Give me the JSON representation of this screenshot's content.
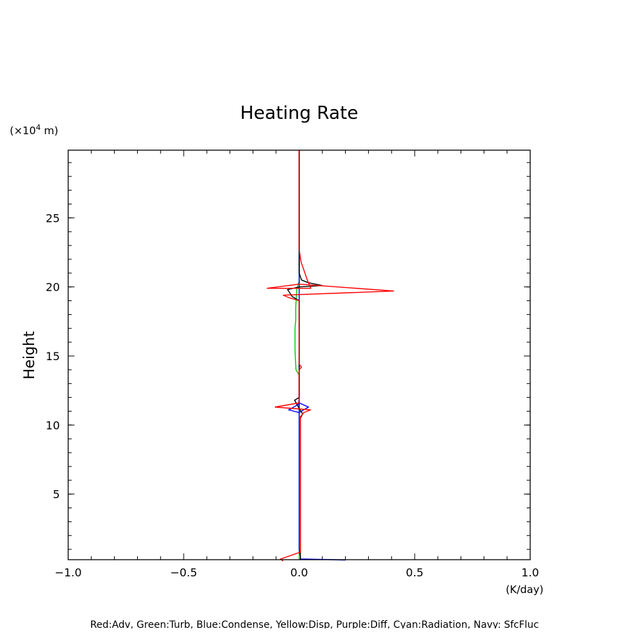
{
  "chart_data": {
    "type": "line",
    "title": "Heating Rate",
    "xlabel": "(K/day)",
    "ylabel": "Height",
    "yunit_prefix": "(×10",
    "yunit_exp": "4",
    "yunit_suffix": " m)",
    "xlim": [
      -1.0,
      1.0
    ],
    "ylim": [
      0.25,
      29.9
    ],
    "xticks": [
      {
        "value": -1.0,
        "label": "−1.0"
      },
      {
        "value": -0.5,
        "label": "−0.5"
      },
      {
        "value": 0.0,
        "label": "0.0"
      },
      {
        "value": 0.5,
        "label": "0.5"
      },
      {
        "value": 1.0,
        "label": "1.0"
      }
    ],
    "yticks": [
      {
        "value": 5,
        "label": "5"
      },
      {
        "value": 10,
        "label": "10"
      },
      {
        "value": 15,
        "label": "15"
      },
      {
        "value": 20,
        "label": "20"
      },
      {
        "value": 25,
        "label": "25"
      }
    ],
    "footnote": "Red:Adv, Green:Turb, Blue:Condense, Yellow:Disp, Purple:Diff, Cyan:Radiation, Navy: SfcFluc",
    "series": [
      {
        "color": "#00cc00",
        "points": [
          [
            0.0,
            29.9
          ],
          [
            0.0,
            20.4
          ],
          [
            -0.01,
            19.9
          ],
          [
            -0.015,
            18.5
          ],
          [
            -0.015,
            17.6
          ],
          [
            -0.018,
            17.0
          ],
          [
            -0.018,
            15.5
          ],
          [
            -0.016,
            14.6
          ],
          [
            -0.014,
            14.0
          ],
          [
            0.0,
            13.6
          ],
          [
            0.0,
            0.25
          ]
        ]
      },
      {
        "color": "#0000ff",
        "points": [
          [
            0.0,
            29.9
          ],
          [
            0.0,
            12.0
          ],
          [
            -0.003,
            11.5
          ],
          [
            -0.045,
            11.1
          ],
          [
            0.0,
            10.9
          ],
          [
            0.04,
            11.3
          ],
          [
            0.0,
            11.6
          ],
          [
            0.0,
            1.0
          ],
          [
            0.005,
            0.5
          ],
          [
            0.005,
            0.3
          ],
          [
            0.15,
            0.25
          ],
          [
            0.2,
            0.22
          ]
        ]
      },
      {
        "color": "#000000",
        "points": [
          [
            0.0,
            29.9
          ],
          [
            0.0,
            21.0
          ],
          [
            0.01,
            20.5
          ],
          [
            0.04,
            20.3
          ],
          [
            0.1,
            20.1
          ],
          [
            0.0,
            20.0
          ],
          [
            -0.05,
            19.8
          ],
          [
            -0.03,
            19.3
          ],
          [
            0.0,
            19.0
          ],
          [
            0.0,
            12.0
          ],
          [
            -0.02,
            11.8
          ],
          [
            0.0,
            11.2
          ],
          [
            0.015,
            10.8
          ],
          [
            0.005,
            10.5
          ],
          [
            0.005,
            0.25
          ]
        ]
      },
      {
        "color": "#ff0000",
        "points": [
          [
            0.0,
            29.9
          ],
          [
            0.0,
            25.0
          ],
          [
            0.0,
            22.7
          ],
          [
            0.008,
            21.8
          ],
          [
            0.025,
            21.0
          ],
          [
            0.035,
            20.5
          ],
          [
            0.05,
            19.9
          ],
          [
            -0.14,
            19.9
          ],
          [
            0.0,
            20.2
          ],
          [
            0.41,
            19.7
          ],
          [
            -0.07,
            19.4
          ],
          [
            -0.04,
            19.2
          ],
          [
            -0.02,
            19.1
          ],
          [
            0.0,
            19.0
          ],
          [
            0.0,
            14.4
          ],
          [
            0.01,
            14.2
          ],
          [
            0.0,
            14.0
          ],
          [
            0.0,
            11.6
          ],
          [
            -0.105,
            11.3
          ],
          [
            0.05,
            11.1
          ],
          [
            0.02,
            10.9
          ],
          [
            0.005,
            10.6
          ],
          [
            0.005,
            0.8
          ],
          [
            -0.08,
            0.3
          ],
          [
            -0.07,
            0.1
          ]
        ]
      }
    ]
  }
}
